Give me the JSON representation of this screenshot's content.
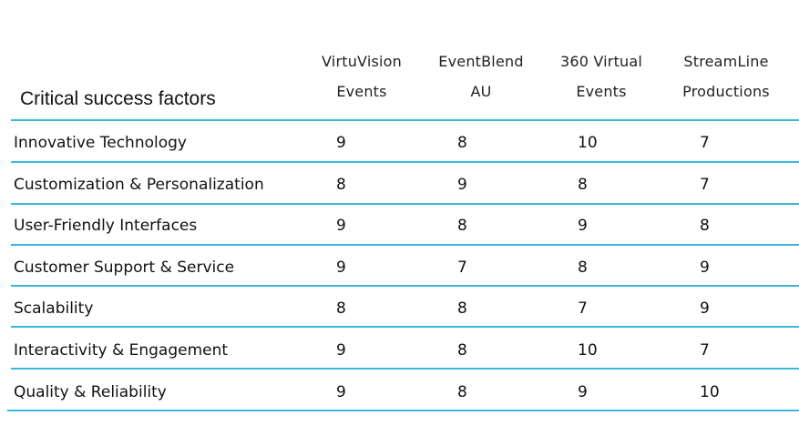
{
  "table": {
    "title": "Critical success factors",
    "columns": [
      {
        "line1": "VirtuVision",
        "line2": "Events"
      },
      {
        "line1": "EventBlend",
        "line2": "AU"
      },
      {
        "line1": "360 Virtual",
        "line2": "Events"
      },
      {
        "line1": "StreamLine",
        "line2": "Productions"
      }
    ],
    "rows": [
      {
        "factor": "Innovative Technology",
        "scores": [
          "9",
          "8",
          "10",
          "7"
        ]
      },
      {
        "factor": "Customization & Personalization",
        "scores": [
          "8",
          "9",
          "8",
          "7"
        ]
      },
      {
        "factor": "User-Friendly Interfaces",
        "scores": [
          "9",
          "8",
          "9",
          "8"
        ]
      },
      {
        "factor": "Customer Support & Service",
        "scores": [
          "9",
          "7",
          "8",
          "9"
        ]
      },
      {
        "factor": "Scalability",
        "scores": [
          "8",
          "8",
          "7",
          "9"
        ]
      },
      {
        "factor": "Interactivity & Engagement",
        "scores": [
          "9",
          "8",
          "10",
          "7"
        ]
      },
      {
        "factor": "Quality & Reliability",
        "scores": [
          "9",
          "8",
          "9",
          "10"
        ]
      }
    ]
  },
  "colors": {
    "rule": "#3cb7dc",
    "text": "#111111"
  }
}
